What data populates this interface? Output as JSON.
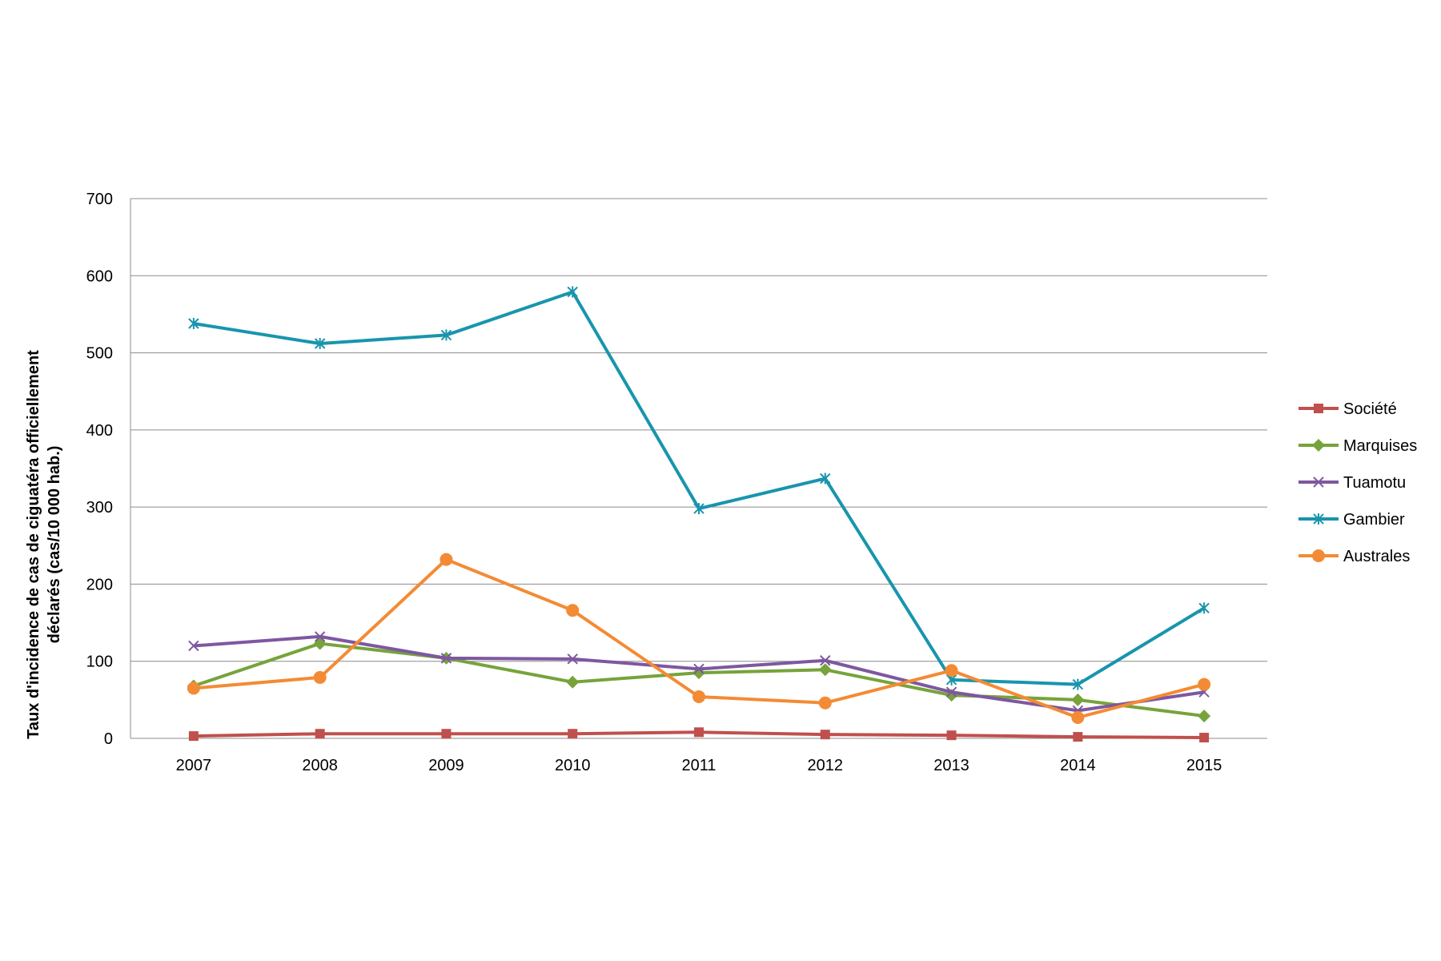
{
  "chart_data": {
    "type": "line",
    "title": "",
    "xlabel": "",
    "ylabel_line1": "Taux d'incidence de cas de ciguatéra officiellement",
    "ylabel_line2": "déclarés (cas/10 000 hab.)",
    "ylim": [
      0,
      700
    ],
    "yticks": [
      0,
      100,
      200,
      300,
      400,
      500,
      600,
      700
    ],
    "categories": [
      "2007",
      "2008",
      "2009",
      "2010",
      "2011",
      "2012",
      "2013",
      "2014",
      "2015"
    ],
    "grid": true,
    "legend_position": "right",
    "series": [
      {
        "name": "Société",
        "color": "#c0504d",
        "marker": "square",
        "values": [
          3,
          6,
          6,
          6,
          8,
          5,
          4,
          2,
          1
        ]
      },
      {
        "name": "Marquises",
        "color": "#77a33b",
        "marker": "diamond",
        "values": [
          68,
          123,
          104,
          73,
          85,
          89,
          56,
          50,
          29
        ]
      },
      {
        "name": "Tuamotu",
        "color": "#7e57a0",
        "marker": "x",
        "values": [
          120,
          132,
          104,
          103,
          90,
          101,
          60,
          36,
          60
        ]
      },
      {
        "name": "Gambier",
        "color": "#1895ad",
        "marker": "star",
        "values": [
          538,
          512,
          523,
          579,
          298,
          337,
          76,
          70,
          169
        ]
      },
      {
        "name": "Australes",
        "color": "#f38b34",
        "marker": "circle",
        "values": [
          65,
          79,
          232,
          166,
          54,
          46,
          88,
          27,
          70
        ]
      }
    ]
  }
}
